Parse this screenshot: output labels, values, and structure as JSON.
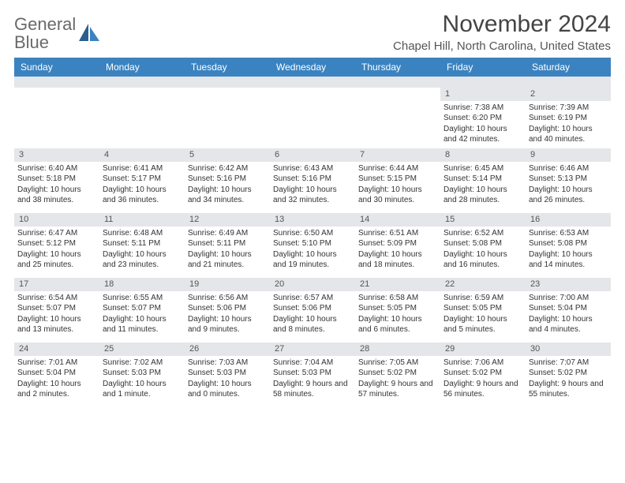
{
  "brand": {
    "name_part1": "General",
    "name_part2": "Blue",
    "gray_color": "#6a6a6a",
    "blue_color": "#3b83c0"
  },
  "title": "November 2024",
  "location": "Chapel Hill, North Carolina, United States",
  "colors": {
    "header_bg": "#3b83c0",
    "header_text": "#ffffff",
    "datebar_bg": "#e4e6e9",
    "body_text": "#333333",
    "page_bg": "#ffffff"
  },
  "day_headers": [
    "Sunday",
    "Monday",
    "Tuesday",
    "Wednesday",
    "Thursday",
    "Friday",
    "Saturday"
  ],
  "weeks": [
    [
      {
        "empty": true
      },
      {
        "empty": true
      },
      {
        "empty": true
      },
      {
        "empty": true
      },
      {
        "empty": true
      },
      {
        "date": "1",
        "sunrise": "Sunrise: 7:38 AM",
        "sunset": "Sunset: 6:20 PM",
        "daylight": "Daylight: 10 hours and 42 minutes."
      },
      {
        "date": "2",
        "sunrise": "Sunrise: 7:39 AM",
        "sunset": "Sunset: 6:19 PM",
        "daylight": "Daylight: 10 hours and 40 minutes."
      }
    ],
    [
      {
        "date": "3",
        "sunrise": "Sunrise: 6:40 AM",
        "sunset": "Sunset: 5:18 PM",
        "daylight": "Daylight: 10 hours and 38 minutes."
      },
      {
        "date": "4",
        "sunrise": "Sunrise: 6:41 AM",
        "sunset": "Sunset: 5:17 PM",
        "daylight": "Daylight: 10 hours and 36 minutes."
      },
      {
        "date": "5",
        "sunrise": "Sunrise: 6:42 AM",
        "sunset": "Sunset: 5:16 PM",
        "daylight": "Daylight: 10 hours and 34 minutes."
      },
      {
        "date": "6",
        "sunrise": "Sunrise: 6:43 AM",
        "sunset": "Sunset: 5:16 PM",
        "daylight": "Daylight: 10 hours and 32 minutes."
      },
      {
        "date": "7",
        "sunrise": "Sunrise: 6:44 AM",
        "sunset": "Sunset: 5:15 PM",
        "daylight": "Daylight: 10 hours and 30 minutes."
      },
      {
        "date": "8",
        "sunrise": "Sunrise: 6:45 AM",
        "sunset": "Sunset: 5:14 PM",
        "daylight": "Daylight: 10 hours and 28 minutes."
      },
      {
        "date": "9",
        "sunrise": "Sunrise: 6:46 AM",
        "sunset": "Sunset: 5:13 PM",
        "daylight": "Daylight: 10 hours and 26 minutes."
      }
    ],
    [
      {
        "date": "10",
        "sunrise": "Sunrise: 6:47 AM",
        "sunset": "Sunset: 5:12 PM",
        "daylight": "Daylight: 10 hours and 25 minutes."
      },
      {
        "date": "11",
        "sunrise": "Sunrise: 6:48 AM",
        "sunset": "Sunset: 5:11 PM",
        "daylight": "Daylight: 10 hours and 23 minutes."
      },
      {
        "date": "12",
        "sunrise": "Sunrise: 6:49 AM",
        "sunset": "Sunset: 5:11 PM",
        "daylight": "Daylight: 10 hours and 21 minutes."
      },
      {
        "date": "13",
        "sunrise": "Sunrise: 6:50 AM",
        "sunset": "Sunset: 5:10 PM",
        "daylight": "Daylight: 10 hours and 19 minutes."
      },
      {
        "date": "14",
        "sunrise": "Sunrise: 6:51 AM",
        "sunset": "Sunset: 5:09 PM",
        "daylight": "Daylight: 10 hours and 18 minutes."
      },
      {
        "date": "15",
        "sunrise": "Sunrise: 6:52 AM",
        "sunset": "Sunset: 5:08 PM",
        "daylight": "Daylight: 10 hours and 16 minutes."
      },
      {
        "date": "16",
        "sunrise": "Sunrise: 6:53 AM",
        "sunset": "Sunset: 5:08 PM",
        "daylight": "Daylight: 10 hours and 14 minutes."
      }
    ],
    [
      {
        "date": "17",
        "sunrise": "Sunrise: 6:54 AM",
        "sunset": "Sunset: 5:07 PM",
        "daylight": "Daylight: 10 hours and 13 minutes."
      },
      {
        "date": "18",
        "sunrise": "Sunrise: 6:55 AM",
        "sunset": "Sunset: 5:07 PM",
        "daylight": "Daylight: 10 hours and 11 minutes."
      },
      {
        "date": "19",
        "sunrise": "Sunrise: 6:56 AM",
        "sunset": "Sunset: 5:06 PM",
        "daylight": "Daylight: 10 hours and 9 minutes."
      },
      {
        "date": "20",
        "sunrise": "Sunrise: 6:57 AM",
        "sunset": "Sunset: 5:06 PM",
        "daylight": "Daylight: 10 hours and 8 minutes."
      },
      {
        "date": "21",
        "sunrise": "Sunrise: 6:58 AM",
        "sunset": "Sunset: 5:05 PM",
        "daylight": "Daylight: 10 hours and 6 minutes."
      },
      {
        "date": "22",
        "sunrise": "Sunrise: 6:59 AM",
        "sunset": "Sunset: 5:05 PM",
        "daylight": "Daylight: 10 hours and 5 minutes."
      },
      {
        "date": "23",
        "sunrise": "Sunrise: 7:00 AM",
        "sunset": "Sunset: 5:04 PM",
        "daylight": "Daylight: 10 hours and 4 minutes."
      }
    ],
    [
      {
        "date": "24",
        "sunrise": "Sunrise: 7:01 AM",
        "sunset": "Sunset: 5:04 PM",
        "daylight": "Daylight: 10 hours and 2 minutes."
      },
      {
        "date": "25",
        "sunrise": "Sunrise: 7:02 AM",
        "sunset": "Sunset: 5:03 PM",
        "daylight": "Daylight: 10 hours and 1 minute."
      },
      {
        "date": "26",
        "sunrise": "Sunrise: 7:03 AM",
        "sunset": "Sunset: 5:03 PM",
        "daylight": "Daylight: 10 hours and 0 minutes."
      },
      {
        "date": "27",
        "sunrise": "Sunrise: 7:04 AM",
        "sunset": "Sunset: 5:03 PM",
        "daylight": "Daylight: 9 hours and 58 minutes."
      },
      {
        "date": "28",
        "sunrise": "Sunrise: 7:05 AM",
        "sunset": "Sunset: 5:02 PM",
        "daylight": "Daylight: 9 hours and 57 minutes."
      },
      {
        "date": "29",
        "sunrise": "Sunrise: 7:06 AM",
        "sunset": "Sunset: 5:02 PM",
        "daylight": "Daylight: 9 hours and 56 minutes."
      },
      {
        "date": "30",
        "sunrise": "Sunrise: 7:07 AM",
        "sunset": "Sunset: 5:02 PM",
        "daylight": "Daylight: 9 hours and 55 minutes."
      }
    ]
  ]
}
